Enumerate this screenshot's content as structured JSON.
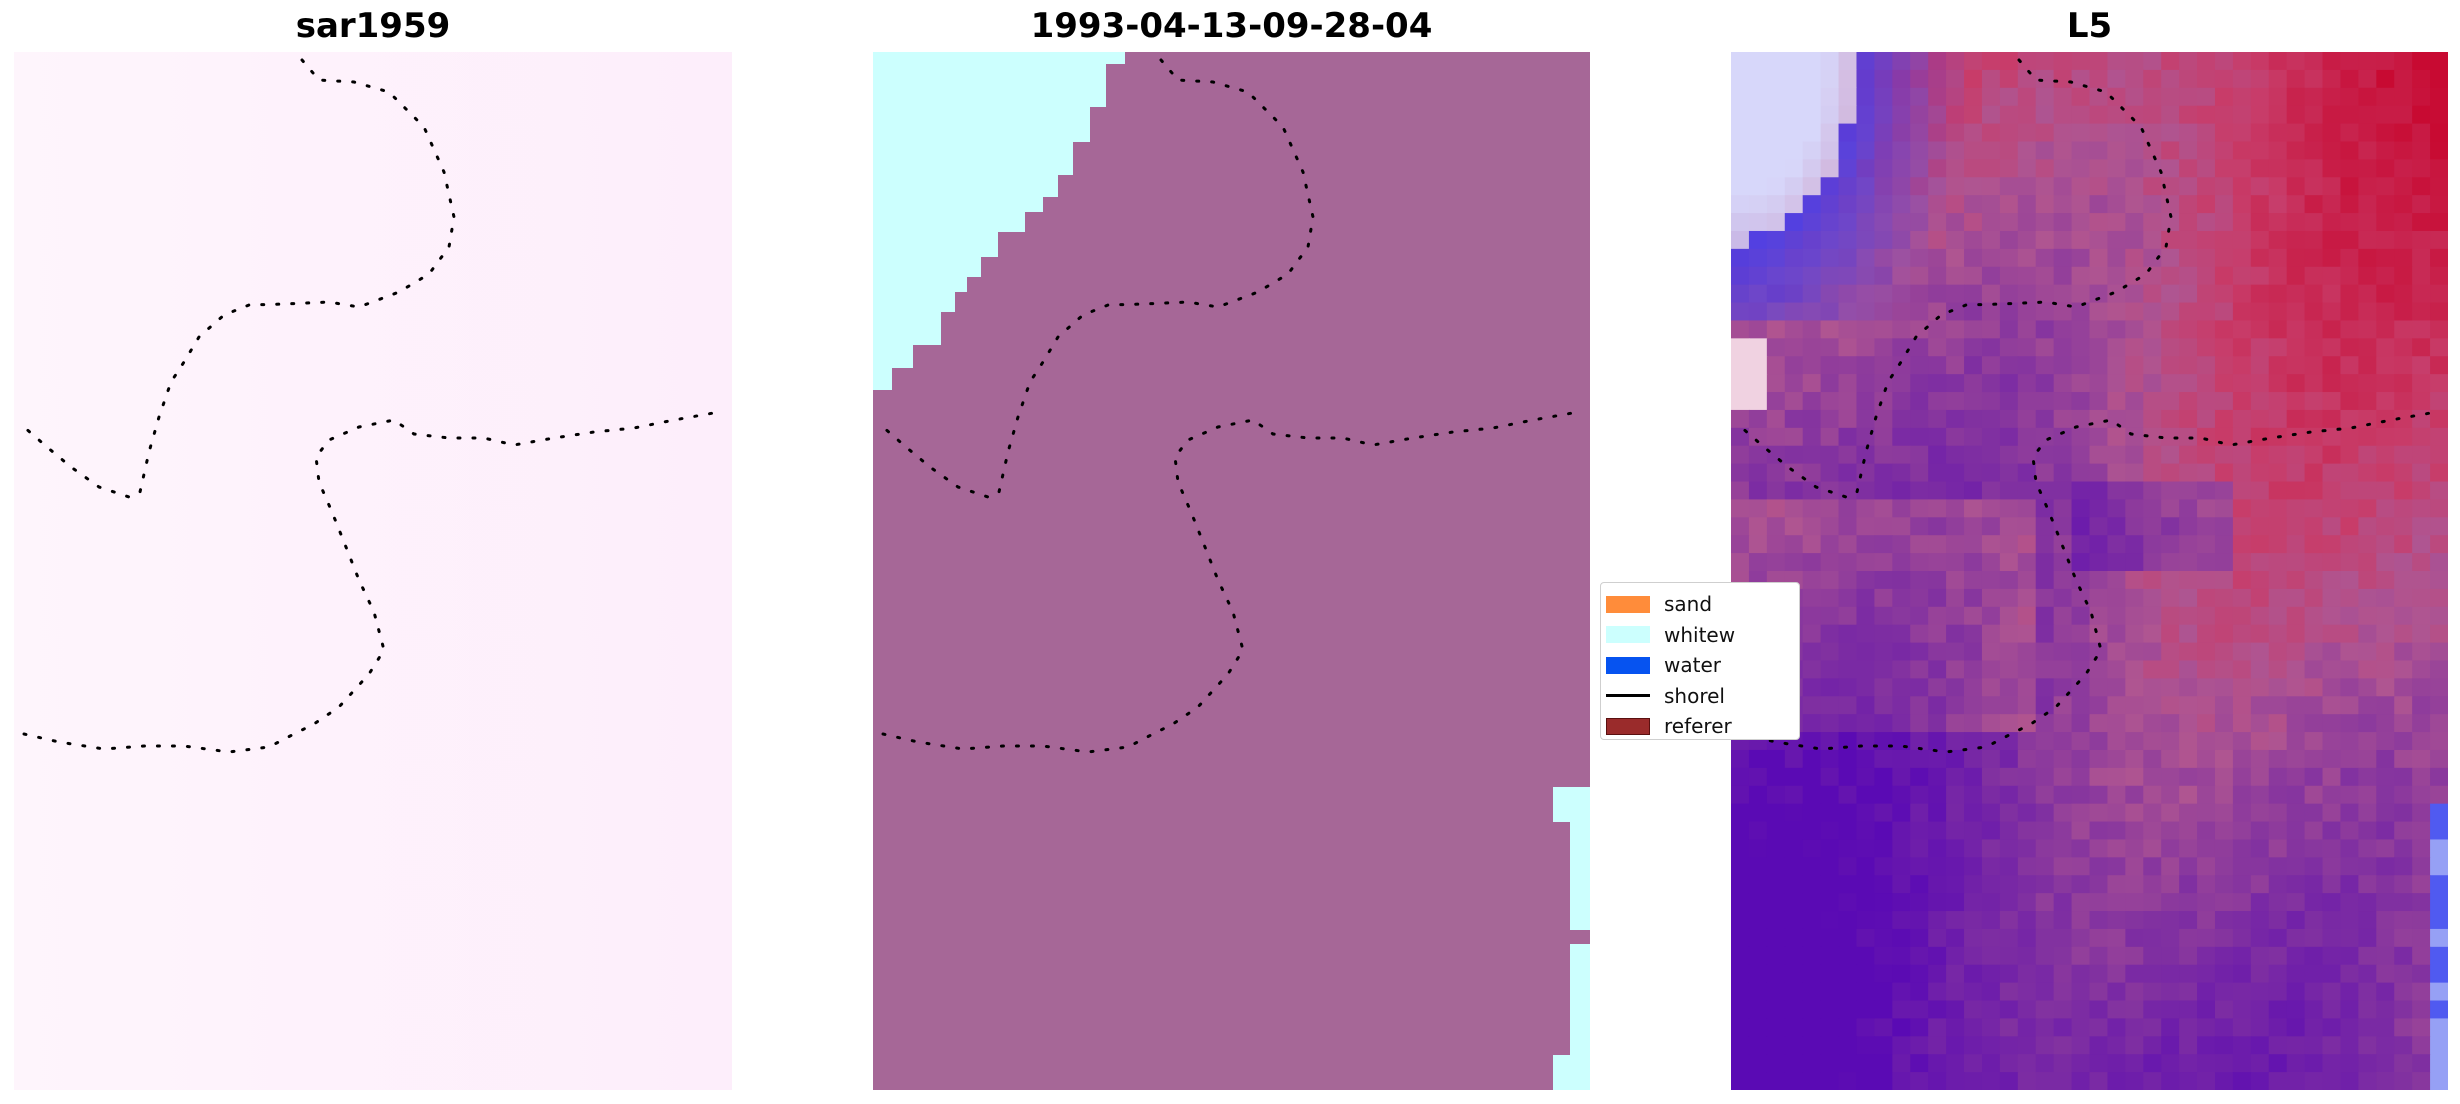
{
  "panels": [
    {
      "title": "sar1959"
    },
    {
      "title": "1993-04-13-09-28-04"
    },
    {
      "title": "L5"
    }
  ],
  "legend": {
    "items": [
      {
        "label": "sand",
        "color": "#ff8c3a",
        "kind": "patch"
      },
      {
        "label": "whitew",
        "color": "#ccfffe",
        "kind": "patch"
      },
      {
        "label": "water",
        "color": "#0653f0",
        "kind": "patch"
      },
      {
        "label": "shorel",
        "color": "#000000",
        "kind": "line"
      },
      {
        "label": "referer",
        "color": "#9a2b2b",
        "kind": "patch"
      }
    ]
  },
  "colors": {
    "classified_land": "#a66797",
    "whitewater": "#ccfffe",
    "sar_background": "#fdf0fb"
  }
}
